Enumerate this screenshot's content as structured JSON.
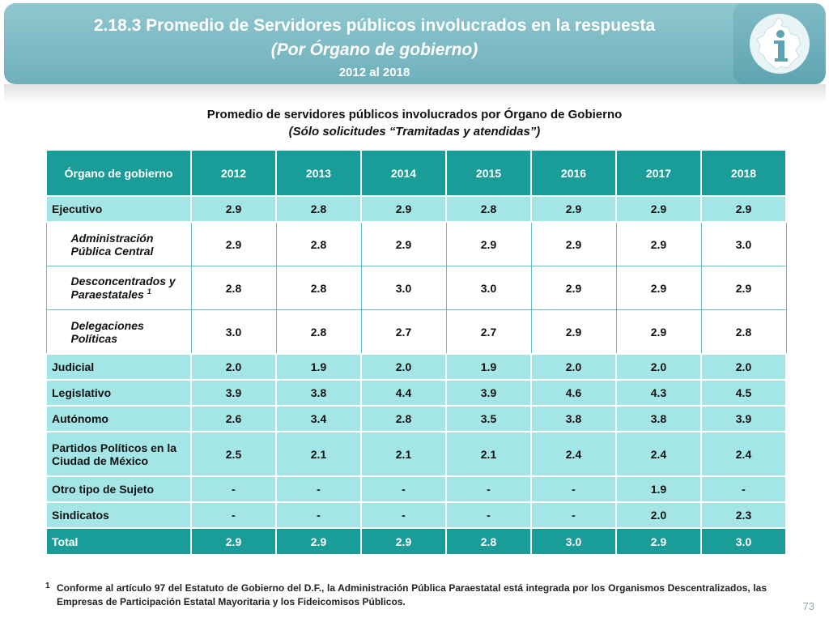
{
  "banner": {
    "title": "2.18.3 Promedio de Servidores públicos involucrados en la respuesta",
    "subtitle": "(Por Órgano de gobierno)",
    "years": "2012 al 2018"
  },
  "table_title": {
    "line1": "Promedio de servidores públicos involucrados por Órgano de Gobierno",
    "line2": "(Sólo solicitudes “Tramitadas y atendidas”)"
  },
  "table": {
    "header": {
      "col0": "Órgano de gobierno",
      "years": [
        "2012",
        "2013",
        "2014",
        "2015",
        "2016",
        "2017",
        "2018"
      ]
    },
    "rows": [
      {
        "label": "Ejecutivo",
        "values": [
          "2.9",
          "2.8",
          "2.9",
          "2.8",
          "2.9",
          "2.9",
          "2.9"
        ]
      },
      {
        "label": "Administración Pública Central",
        "values": [
          "2.9",
          "2.8",
          "2.9",
          "2.9",
          "2.9",
          "2.9",
          "3.0"
        ]
      },
      {
        "label": "Desconcentrados y Paraestatales",
        "sup": "1",
        "values": [
          "2.8",
          "2.8",
          "3.0",
          "3.0",
          "2.9",
          "2.9",
          "2.9"
        ]
      },
      {
        "label": "Delegaciones Políticas",
        "values": [
          "3.0",
          "2.8",
          "2.7",
          "2.7",
          "2.9",
          "2.9",
          "2.8"
        ]
      },
      {
        "label": "Judicial",
        "values": [
          "2.0",
          "1.9",
          "2.0",
          "1.9",
          "2.0",
          "2.0",
          "2.0"
        ]
      },
      {
        "label": "Legislativo",
        "values": [
          "3.9",
          "3.8",
          "4.4",
          "3.9",
          "4.6",
          "4.3",
          "4.5"
        ]
      },
      {
        "label": "Autónomo",
        "values": [
          "2.6",
          "3.4",
          "2.8",
          "3.5",
          "3.8",
          "3.8",
          "3.9"
        ]
      },
      {
        "label": "Partidos Políticos en la Ciudad de México",
        "values": [
          "2.5",
          "2.1",
          "2.1",
          "2.1",
          "2.4",
          "2.4",
          "2.4"
        ]
      },
      {
        "label": "Otro tipo de Sujeto",
        "values": [
          "-",
          "-",
          "-",
          "-",
          "-",
          "1.9",
          "-"
        ]
      },
      {
        "label": "Sindicatos",
        "values": [
          "-",
          "-",
          "-",
          "-",
          "-",
          "2.0",
          "2.3"
        ]
      },
      {
        "label": "Total",
        "values": [
          "2.9",
          "2.9",
          "2.9",
          "2.8",
          "3.0",
          "2.9",
          "3.0"
        ]
      }
    ]
  },
  "footnote": {
    "mark": "1",
    "text": "Conforme al artículo 97 del Estatuto de Gobierno del D.F., la Administración Pública Paraestatal está integrada por los Organismos Descentralizados, las Empresas de Participación Estatal Mayoritaria y los Fideicomisos Públicos."
  },
  "page_number": "73",
  "colors": {
    "banner": "#7ab8c2",
    "header": "#1a9d98",
    "main_row": "#a4e6e6"
  },
  "icons": {
    "logo": "mexico-city-map-info-logo"
  }
}
